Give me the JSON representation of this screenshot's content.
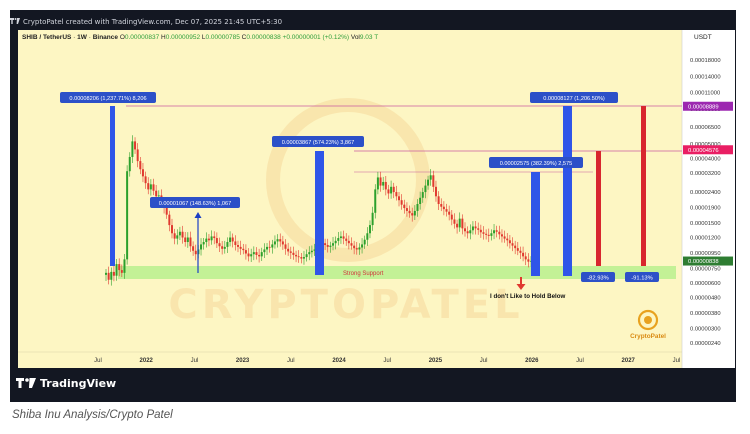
{
  "header": {
    "created_by": "CryptoPatel created with TradingView.com, Dec 07, 2025 21:45 UTC+5:30"
  },
  "footer": {
    "brand": "TradingView"
  },
  "caption": "Shiba Inu Analysis/Crypto Patel",
  "colors": {
    "chart_bg": "#fdf6c3",
    "bull": "#2ca02c",
    "bear": "#e0392f",
    "blue_bar": "#2f55e8",
    "red_bar": "#d8262e",
    "zone": "#b8f08e",
    "level_line": "#c85aa0",
    "label_bg": "#2c50c8"
  },
  "chart_data": {
    "type": "candlestick",
    "title": "",
    "symbol": {
      "pair": "SHIB / TetherUS",
      "interval": "1W",
      "exchange": "Binance"
    },
    "ohlc": {
      "open_label": "O",
      "open": "0.00000837",
      "high_label": "H",
      "high": "0.00000952",
      "low_label": "L",
      "low": "0.00000785",
      "close_label": "C",
      "close": "0.00000838",
      "change": "+0.00000001 (+0.12%)",
      "volume_label": "Vol",
      "volume": "9.03 T"
    },
    "currency": "USDT",
    "y_scale": "log",
    "y_ticks": [
      "0.00018000",
      "0.00014000",
      "0.00011000",
      "0.00008500",
      "0.00006500",
      "0.00005000",
      "0.00004000",
      "0.00003200",
      "0.00002400",
      "0.00001900",
      "0.00001500",
      "0.00001200",
      "0.00000950",
      "0.00000750",
      "0.00000600",
      "0.00000480",
      "0.00000380",
      "0.00000300",
      "0.00000240"
    ],
    "x_ticks": [
      "Jul",
      "2022",
      "Jul",
      "2023",
      "Jul",
      "2024",
      "Jul",
      "2025",
      "Jul",
      "2026",
      "Jul",
      "2027",
      "Jul"
    ],
    "price_badges": [
      {
        "value": "0.00008889",
        "color": "#9c27b0"
      },
      {
        "value": "0.00004576",
        "color": "#e91e63"
      },
      {
        "value": "0.00000838",
        "color": "#2e7d32"
      }
    ],
    "measure_labels": [
      "0.00008206 (1,237.71%) 8,206",
      "0.00001067 (148.63%) 1,067",
      "0.00003867 (574.23%) 3,867",
      "0.00002575 (382.39%) 2,575",
      "0.00008127 (1,206.50%)"
    ],
    "drop_labels": [
      "-82.93%",
      "-91.13%"
    ],
    "zone_label": "Strong Support",
    "annotation": "I don't Like to Hold Below",
    "watermark": "CRYPTOPATEL",
    "logo_text": "CryptoPatel",
    "closes": [
      7e-06,
      6.3e-06,
      7.1e-06,
      6.7e-06,
      8e-06,
      7.3e-06,
      7e-06,
      8.6e-06,
      3.3e-05,
      4.1e-05,
      5.2e-05,
      4.6e-05,
      3.85e-05,
      3.4e-05,
      3.05e-05,
      2.75e-05,
      2.5e-05,
      2.7e-05,
      2.45e-05,
      2.25e-05,
      2.28e-05,
      2.05e-05,
      1.9e-05,
      1.7e-05,
      1.45e-05,
      1.28e-05,
      1.18e-05,
      1.24e-05,
      1.31e-05,
      1.2e-05,
      1.12e-05,
      1.2e-05,
      1.05e-05,
      9.8e-06,
      9.3e-06,
      1e-05,
      1.08e-05,
      1.12e-05,
      1.18e-05,
      1.15e-05,
      1.22e-05,
      1.19e-05,
      1.1e-05,
      1.05e-05,
      1.01e-05,
      1.04e-05,
      1.12e-05,
      1.2e-05,
      1.13e-05,
      1.07e-05,
      1.04e-05,
      1.01e-05,
      9.9e-06,
      9.4e-06,
      9e-06,
      9.3e-06,
      9.6e-06,
      9.2e-06,
      9e-06,
      9.6e-06,
      1e-05,
      1.04e-05,
      1.03e-05,
      1.08e-05,
      1.13e-05,
      1.17e-05,
      1.13e-05,
      1.08e-05,
      1.01e-05,
      9.7e-06,
      9.5e-06,
      9.2e-06,
      9e-06,
      8.9e-06,
      8.7e-06,
      8.9e-06,
      9.3e-06,
      9.6e-06,
      9.8e-06,
      1e-05,
      1.03e-05,
      1.07e-05,
      1.1e-05,
      1.07e-05,
      1.04e-05,
      1.06e-05,
      1.1e-05,
      1.14e-05,
      1.19e-05,
      1.22e-05,
      1.18e-05,
      1.14e-05,
      1.1e-05,
      1.06e-05,
      1.02e-05,
      1e-05,
      1.03e-05,
      1.08e-05,
      1.16e-05,
      1.28e-05,
      1.45e-05,
      1.75e-05,
      2.5e-05,
      3e-05,
      2.65e-05,
      2.8e-05,
      2.5e-05,
      2.35e-05,
      2.6e-05,
      2.4e-05,
      2.25e-05,
      2.12e-05,
      1.98e-05,
      1.88e-05,
      1.8e-05,
      1.74e-05,
      1.68e-05,
      1.8e-05,
      2e-05,
      2.2e-05,
      2.4e-05,
      2.65e-05,
      2.9e-05,
      3.1e-05,
      2.6e-05,
      2.25e-05,
      2e-05,
      1.92e-05,
      1.85e-05,
      1.78e-05,
      1.7e-05,
      1.58e-05,
      1.48e-05,
      1.4e-05,
      1.6e-05,
      1.38e-05,
      1.32e-05,
      1.28e-05,
      1.34e-05,
      1.42e-05,
      1.38e-05,
      1.35e-05,
      1.3e-05,
      1.27e-05,
      1.25e-05,
      1.23e-05,
      1.28e-05,
      1.34e-05,
      1.31e-05,
      1.26e-05,
      1.22e-05,
      1.18e-05,
      1.15e-05,
      1.1e-05,
      1.06e-05,
      1.02e-05,
      9.8e-06,
      9.5e-06,
      9e-06,
      8.6e-06,
      8.3e-06,
      8.4e-06
    ]
  }
}
